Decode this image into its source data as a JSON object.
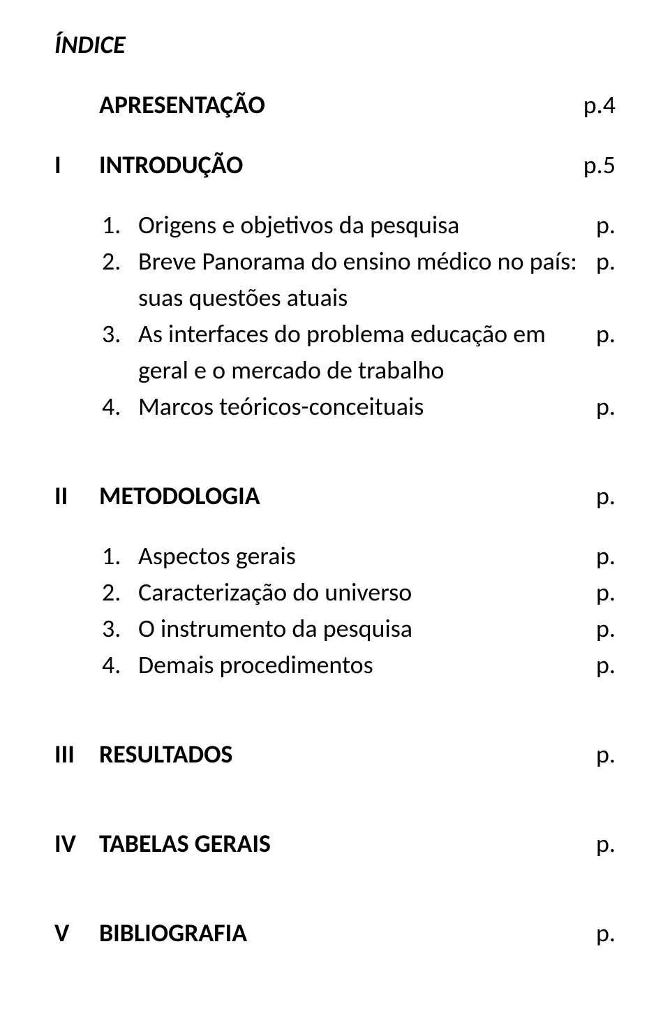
{
  "document": {
    "title": "ÍNDICE",
    "colors": {
      "background": "#ffffff",
      "text": "#000000"
    },
    "typography": {
      "font_family": "Calibri",
      "title_fontsize": 36,
      "body_fontsize": 36,
      "title_weight": "bold",
      "title_style": "italic"
    },
    "entries": {
      "apresentacao": {
        "label": "APRESENTAÇÃO",
        "page": "p.4"
      },
      "section1": {
        "roman": "I",
        "label": "INTRODUÇÃO",
        "page": "p.5",
        "items": [
          {
            "num": "1.",
            "label": "Origens e objetivos da pesquisa",
            "page": "p."
          },
          {
            "num": "2.",
            "label": "Breve Panorama do ensino médico no país:",
            "page": "p.",
            "continuation": "suas questões atuais"
          },
          {
            "num": "3.",
            "label": "As interfaces do problema educação em",
            "page": "p.",
            "continuation": "geral e o mercado de trabalho"
          },
          {
            "num": "4.",
            "label": "Marcos teóricos-conceituais",
            "page": "p."
          }
        ]
      },
      "section2": {
        "roman": "II",
        "label": "METODOLOGIA",
        "page": "p.",
        "items": [
          {
            "num": "1.",
            "label": "Aspectos gerais",
            "page": "p."
          },
          {
            "num": "2.",
            "label": "Caracterização do universo",
            "page": "p."
          },
          {
            "num": "3.",
            "label": "O instrumento da pesquisa",
            "page": "p."
          },
          {
            "num": "4.",
            "label": "Demais procedimentos",
            "page": "p."
          }
        ]
      },
      "section3": {
        "roman": "III",
        "label": "RESULTADOS",
        "page": "p."
      },
      "section4": {
        "roman": "IV",
        "label": "TABELAS GERAIS",
        "page": "p."
      },
      "section5": {
        "roman": "V",
        "label": "BIBLIOGRAFIA",
        "page": "p."
      }
    }
  }
}
